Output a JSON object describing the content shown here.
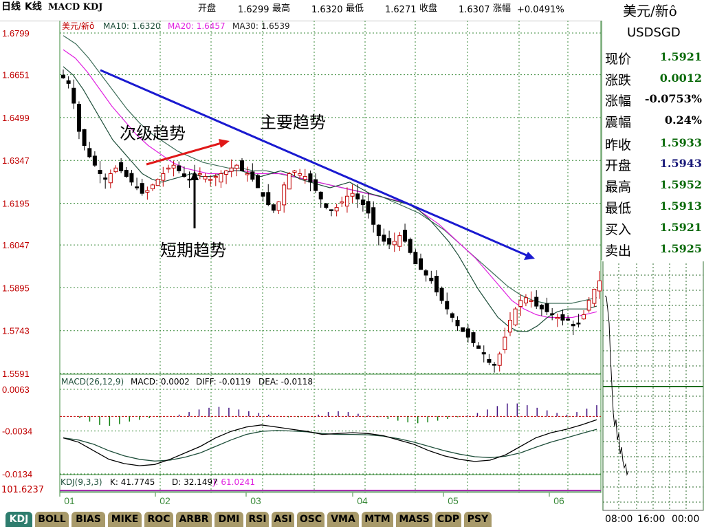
{
  "header": {
    "period": "日线",
    "chart_kind": "K线",
    "indicators": "MACD KDJ",
    "open_label": "开盘",
    "open_value": "1.6299",
    "high_label": "最高",
    "high_value": "1.6320",
    "low_label": "最低",
    "low_value": "1.6271",
    "close_label": "收盘",
    "close_value": "1.6307",
    "change_label": "涨幅",
    "change_value": "+0.0491%"
  },
  "legend": {
    "symbol": "美元/新ô",
    "ma10": "MA10: 1.6320",
    "ma20": "MA20: 1.6457",
    "ma30": "MA30: 1.6539"
  },
  "macd_legend": {
    "params": "MACD(26,12,9)",
    "macd": "MACD: 0.0002",
    "diff": "DIFF: -0.0119",
    "dea": "DEA: -0.0118"
  },
  "kdj_legend": {
    "params": "KDJ(9,3,3)",
    "k": "K: 41.7745",
    "d": "D: 32.1497",
    "j": "J: 61.0241"
  },
  "kdj_axis_label": "101.6237",
  "annotations": {
    "main_trend": "主要趋势",
    "secondary_trend": "次级趋势",
    "short_trend": "短期趋势"
  },
  "side_panel": {
    "title": "美元/新ô",
    "code": "USDSGD",
    "rows": [
      {
        "label": "现价",
        "value": "1.5921"
      },
      {
        "label": "涨跌",
        "value": "0.0012"
      },
      {
        "label": "涨幅",
        "value": "-0.0753%"
      },
      {
        "label": "震幅",
        "value": "0.24%"
      },
      {
        "label": "昨收",
        "value": "1.5933"
      },
      {
        "label": "开盘",
        "value": "1.5943"
      },
      {
        "label": "最高",
        "value": "1.5952"
      },
      {
        "label": "最低",
        "value": "1.5913"
      },
      {
        "label": "买入",
        "value": "1.5921"
      },
      {
        "label": "卖出",
        "value": "1.5925"
      }
    ],
    "time_labels": [
      "08:00",
      "16:00",
      "00:00"
    ]
  },
  "tabs": [
    "KDJ",
    "BOLL",
    "BIAS",
    "MIKE",
    "ROC",
    "ARBR",
    "DMI",
    "RSI",
    "ASI",
    "OSC",
    "VMA",
    "MTM",
    "MASS",
    "CDP",
    "PSY"
  ],
  "colors": {
    "axis_red": "#c00000",
    "grid_green": "#3a8a3a",
    "ma10": "#1e4e3a",
    "ma20": "#e020e0",
    "ma30": "#3f6e5a",
    "trend_main": "#1a1ad0",
    "trend_secondary": "#e01818",
    "macd_pos": "#401080",
    "macd_neg": "#108010",
    "tab_bg": "#a89a6a",
    "tab_active": "#2e7d6e"
  },
  "chart_data": {
    "type": "candlestick",
    "title": "",
    "x_tick_labels": [
      "01",
      "02",
      "03",
      "04",
      "05",
      "06"
    ],
    "price_y_ticks": [
      1.6799,
      1.6651,
      1.6499,
      1.6347,
      1.6195,
      1.6047,
      1.5895,
      1.5743,
      1.5591
    ],
    "price_ylim": [
      1.5591,
      1.6799
    ],
    "price_path": [
      1.664,
      1.662,
      1.655,
      1.645,
      1.64,
      1.636,
      1.633,
      1.63,
      1.628,
      1.63,
      1.632,
      1.631,
      1.629,
      1.627,
      1.625,
      1.623,
      1.624,
      1.626,
      1.628,
      1.63,
      1.632,
      1.633,
      1.631,
      1.629,
      1.628,
      1.629,
      1.63,
      1.629,
      1.628,
      1.629,
      1.63,
      1.631,
      1.632,
      1.633,
      1.631,
      1.63,
      1.628,
      1.625,
      1.622,
      1.619,
      1.617,
      1.62,
      1.626,
      1.63,
      1.631,
      1.63,
      1.629,
      1.627,
      1.624,
      1.621,
      1.618,
      1.617,
      1.618,
      1.62,
      1.622,
      1.623,
      1.621,
      1.619,
      1.616,
      1.612,
      1.608,
      1.606,
      1.605,
      1.606,
      1.608,
      1.606,
      1.602,
      1.598,
      1.596,
      1.594,
      1.592,
      1.588,
      1.585,
      1.582,
      1.579,
      1.576,
      1.574,
      1.572,
      1.57,
      1.568,
      1.566,
      1.563,
      1.562,
      1.566,
      1.572,
      1.578,
      1.582,
      1.585,
      1.586,
      1.585,
      1.583,
      1.582,
      1.581,
      1.58,
      1.579,
      1.578,
      1.578,
      1.576,
      1.577,
      1.58,
      1.585,
      1.589,
      1.592
    ],
    "ma10_path": [
      1.668,
      1.665,
      1.66,
      1.654,
      1.648,
      1.642,
      1.638,
      1.634,
      1.63,
      1.628,
      1.627,
      1.628,
      1.629,
      1.63,
      1.629,
      1.629,
      1.63,
      1.631,
      1.631,
      1.63,
      1.629,
      1.63,
      1.631,
      1.63,
      1.628,
      1.627,
      1.626,
      1.625,
      1.626,
      1.627,
      1.625,
      1.623,
      1.622,
      1.621,
      1.62,
      1.619,
      1.617,
      1.614,
      1.61,
      1.606,
      1.601,
      1.595,
      1.589,
      1.584,
      1.579,
      1.576,
      1.574,
      1.574,
      1.576,
      1.579,
      1.581,
      1.582,
      1.582,
      1.582,
      1.583
    ],
    "ma20_path": [
      1.674,
      1.671,
      1.666,
      1.66,
      1.654,
      1.649,
      1.644,
      1.64,
      1.637,
      1.634,
      1.632,
      1.631,
      1.63,
      1.63,
      1.631,
      1.631,
      1.63,
      1.63,
      1.63,
      1.629,
      1.628,
      1.627,
      1.626,
      1.625,
      1.624,
      1.623,
      1.622,
      1.621,
      1.62,
      1.618,
      1.615,
      1.612,
      1.608,
      1.604,
      1.6,
      1.595,
      1.59,
      1.585,
      1.582,
      1.58,
      1.579,
      1.579,
      1.579,
      1.58,
      1.581
    ],
    "ma30_path": [
      1.679,
      1.676,
      1.671,
      1.665,
      1.659,
      1.653,
      1.648,
      1.644,
      1.641,
      1.638,
      1.636,
      1.634,
      1.633,
      1.632,
      1.632,
      1.631,
      1.631,
      1.63,
      1.629,
      1.628,
      1.627,
      1.626,
      1.625,
      1.624,
      1.623,
      1.622,
      1.62,
      1.618,
      1.616,
      1.613,
      1.61,
      1.606,
      1.602,
      1.598,
      1.594,
      1.59,
      1.587,
      1.585,
      1.584,
      1.584,
      1.584,
      1.585,
      1.586
    ],
    "macd_y_ticks": [
      0.0063,
      -0.0034,
      -0.0134
    ],
    "macd_ylim": [
      -0.0134,
      0.0063
    ],
    "macd_hist": [
      -0.0004,
      -0.0012,
      -0.002,
      -0.0022,
      -0.0018,
      -0.0012,
      -0.0008,
      -0.0004,
      -0.0002,
      0.0,
      0.0004,
      0.001,
      0.0016,
      0.002,
      0.0022,
      0.002,
      0.0016,
      0.0012,
      0.0008,
      0.0004,
      0.0,
      -0.0002,
      -0.0002,
      0.0,
      0.0004,
      0.001,
      0.0012,
      0.001,
      0.0006,
      0.0002,
      -0.0002,
      -0.0006,
      -0.001,
      -0.0014,
      -0.0016,
      -0.0014,
      -0.001,
      -0.0006,
      -0.0002,
      0.0002,
      0.0008,
      0.0016,
      0.0024,
      0.003,
      0.003,
      0.0026,
      0.002,
      0.0014,
      0.0008,
      0.0004,
      0.001,
      0.0018,
      0.0026
    ],
    "macd_diff": [
      -0.005,
      -0.006,
      -0.008,
      -0.01,
      -0.011,
      -0.0115,
      -0.0112,
      -0.01,
      -0.0085,
      -0.007,
      -0.005,
      -0.0035,
      -0.0025,
      -0.002,
      -0.0025,
      -0.003,
      -0.0035,
      -0.0042,
      -0.004,
      -0.0038,
      -0.004,
      -0.0045,
      -0.0055,
      -0.0065,
      -0.008,
      -0.0092,
      -0.01,
      -0.0105,
      -0.0102,
      -0.009,
      -0.007,
      -0.005,
      -0.0038,
      -0.003,
      -0.002,
      -0.0008
    ],
    "macd_dea": [
      -0.005,
      -0.0055,
      -0.0065,
      -0.008,
      -0.0092,
      -0.01,
      -0.0104,
      -0.0102,
      -0.0095,
      -0.0085,
      -0.007,
      -0.0055,
      -0.0042,
      -0.0035,
      -0.0033,
      -0.0034,
      -0.0036,
      -0.004,
      -0.0042,
      -0.0042,
      -0.0043,
      -0.0046,
      -0.0052,
      -0.006,
      -0.007,
      -0.008,
      -0.0088,
      -0.0094,
      -0.0096,
      -0.0093,
      -0.0085,
      -0.0072,
      -0.006,
      -0.005,
      -0.004,
      -0.003
    ]
  }
}
